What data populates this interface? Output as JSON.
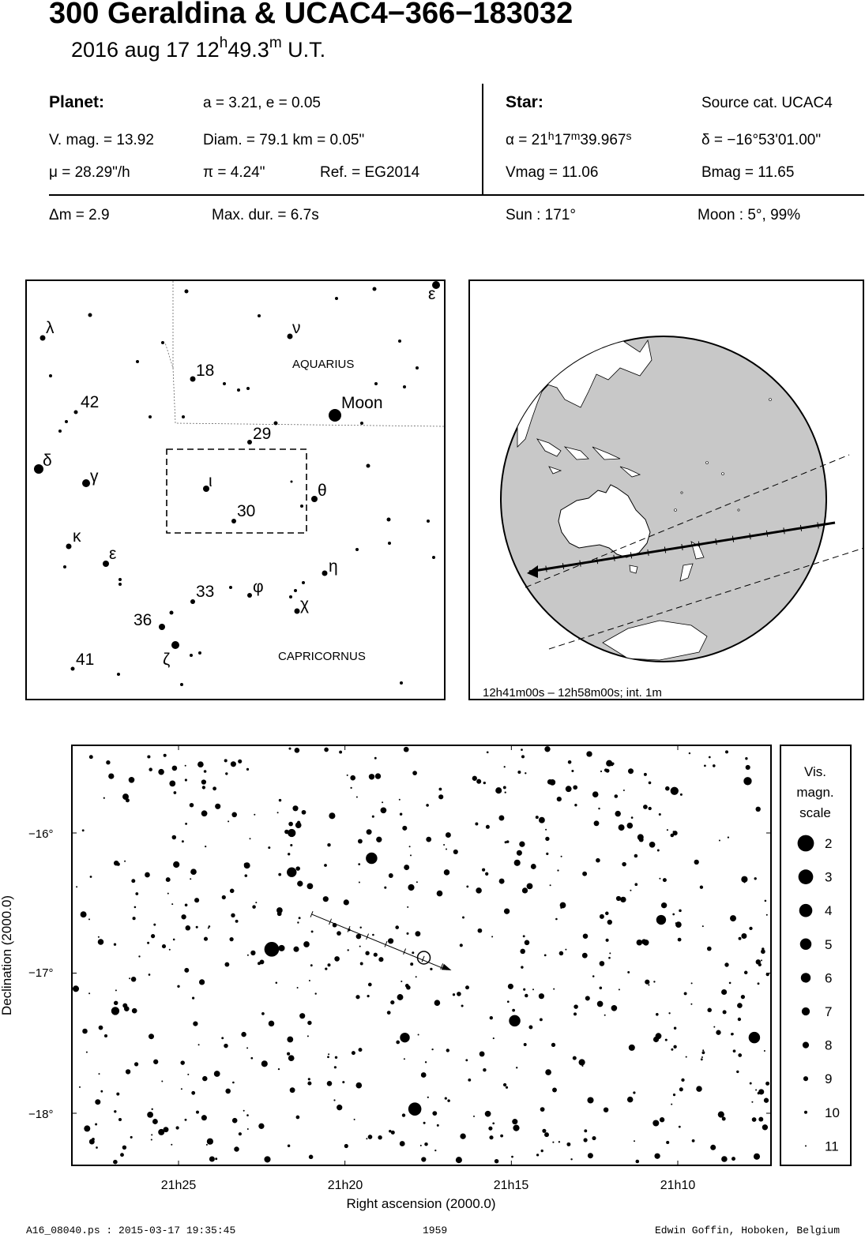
{
  "header": {
    "title": "300 Geraldina  &  UCAC4−366−183032",
    "date": "2016 aug 17  12",
    "hour_unit": "h",
    "minutes": "49.3",
    "min_unit": "m",
    "ut": " U.T."
  },
  "planet": {
    "heading": "Planet:",
    "orbit": "a = 3.21, e = 0.05",
    "vmag": "V. mag. = 13.92",
    "diam": "Diam. = 79.1 km = 0.05\"",
    "mu": "μ =  28.29\"/h",
    "pi": "π =  4.24\"",
    "ref": "Ref. = EG2014"
  },
  "star": {
    "heading": "Star:",
    "source": "Source cat.  UCAC4",
    "alpha_prefix": "α = 21",
    "alpha_h": "h",
    "alpha_min": "17",
    "alpha_m": "m",
    "alpha_sec": "39.967",
    "alpha_s": "s",
    "delta": "δ = −16°53'01.00\"",
    "vmag": "Vmag = 11.06",
    "bmag": "Bmag = 11.65"
  },
  "event": {
    "dm": "Δm = 2.9",
    "maxdur": "Max. dur. = 6.7s",
    "sun": "Sun : 171°",
    "moon": "Moon :   5°, 99%"
  },
  "finder": {
    "labels": {
      "aquarius": "AQUARIUS",
      "capricornus": "CAPRICORNUS",
      "moon": "Moon",
      "n18": "18",
      "n42": "42",
      "n29": "29",
      "n30": "30",
      "n33": "33",
      "n36": "36",
      "n41": "41",
      "lambda": "λ",
      "nu": "ν",
      "epsilon_top": "ε",
      "delta": "δ",
      "gamma": "γ",
      "iota": "ι",
      "theta": "θ",
      "kappa": "κ",
      "epsilon": "ε",
      "eta": "η",
      "phi": "φ",
      "chi": "χ",
      "zeta": "ζ"
    }
  },
  "globe": {
    "caption": "12h41m00s – 12h58m00s; int.  1m"
  },
  "chart_data": {
    "type": "scatter",
    "xlabel": "Right ascension (2000.0)",
    "ylabel": "Declination (2000.0)",
    "x_ticks": [
      "21h25",
      "21h20",
      "21h15",
      "21h10"
    ],
    "y_ticks": [
      "−16°",
      "−17°",
      "−18°"
    ],
    "bright_stars": [
      {
        "ra_min": 22.2,
        "dec": -16.83,
        "mag": 3
      },
      {
        "ra_min": 17.9,
        "dec": -17.97,
        "mag": 4
      },
      {
        "ra_min": 14.9,
        "dec": -17.34,
        "mag": 5
      },
      {
        "ra_min": 19.2,
        "dec": -16.18,
        "mag": 5
      },
      {
        "ra_min": 21.6,
        "dec": -16.28,
        "mag": 6
      },
      {
        "ra_min": 18.2,
        "dec": -17.46,
        "mag": 6
      },
      {
        "ra_min": 10.5,
        "dec": -16.62,
        "mag": 6
      },
      {
        "ra_min": 7.7,
        "dec": -17.46,
        "mag": 5
      },
      {
        "ra_min": 10.1,
        "dec": -15.7,
        "mag": 7
      },
      {
        "ra_min": 7.9,
        "dec": -15.63,
        "mag": 7
      },
      {
        "ra_min": 21.6,
        "dec": -16.0,
        "mag": 7
      },
      {
        "ra_min": 26.9,
        "dec": -17.27,
        "mag": 7
      }
    ],
    "path": {
      "start": {
        "ra_min": 21.0,
        "dec": -16.58
      },
      "end": {
        "ra_min": 16.8,
        "dec": -16.98
      }
    },
    "target": {
      "ra_min": 17.63,
      "dec": -16.89
    }
  },
  "legend": {
    "title1": "Vis.",
    "title2": "magn.",
    "title3": "scale",
    "mags": [
      "2",
      "3",
      "4",
      "5",
      "6",
      "7",
      "8",
      "9",
      "10",
      "11"
    ]
  },
  "footer": {
    "left": "A16_08040.ps : 2015-03-17 19:35:45",
    "center": "1959",
    "right": "Edwin Goffin, Hoboken, Belgium"
  }
}
